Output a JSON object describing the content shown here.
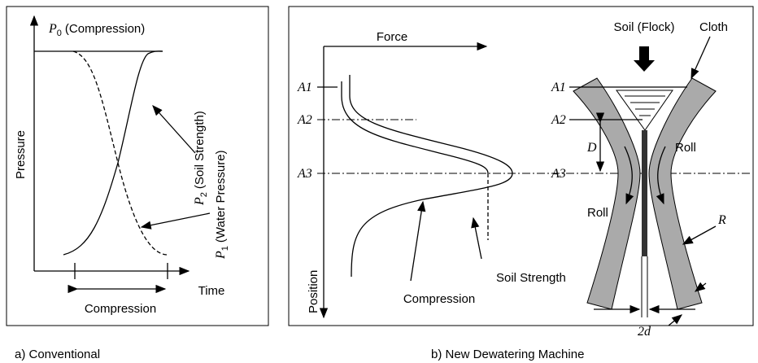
{
  "panel_a": {
    "p0": {
      "symbol": "P",
      "subscript": "0",
      "text": "(Compression)"
    },
    "p2": {
      "symbol": "P",
      "subscript": "2",
      "text": "(Soil Strength)"
    },
    "p1": {
      "symbol": "P",
      "subscript": "1",
      "text": "(Water Pressure)"
    },
    "y_axis": "Pressure",
    "x_axis": "Time",
    "span": "Compression",
    "caption": "a) Conventional"
  },
  "panel_b": {
    "force_axis": "Force",
    "position_axis": "Position",
    "levels": [
      "A1",
      "A2",
      "A3"
    ],
    "compression": "Compression",
    "soil_strength": "Soil Strength",
    "soil": "Soil (Flock)",
    "cloth": "Cloth",
    "gap": "D",
    "roll_left": "Roll",
    "roll_right": "Roll",
    "radius": "R",
    "width": "2d",
    "caption": "b) New Dewatering Machine"
  }
}
